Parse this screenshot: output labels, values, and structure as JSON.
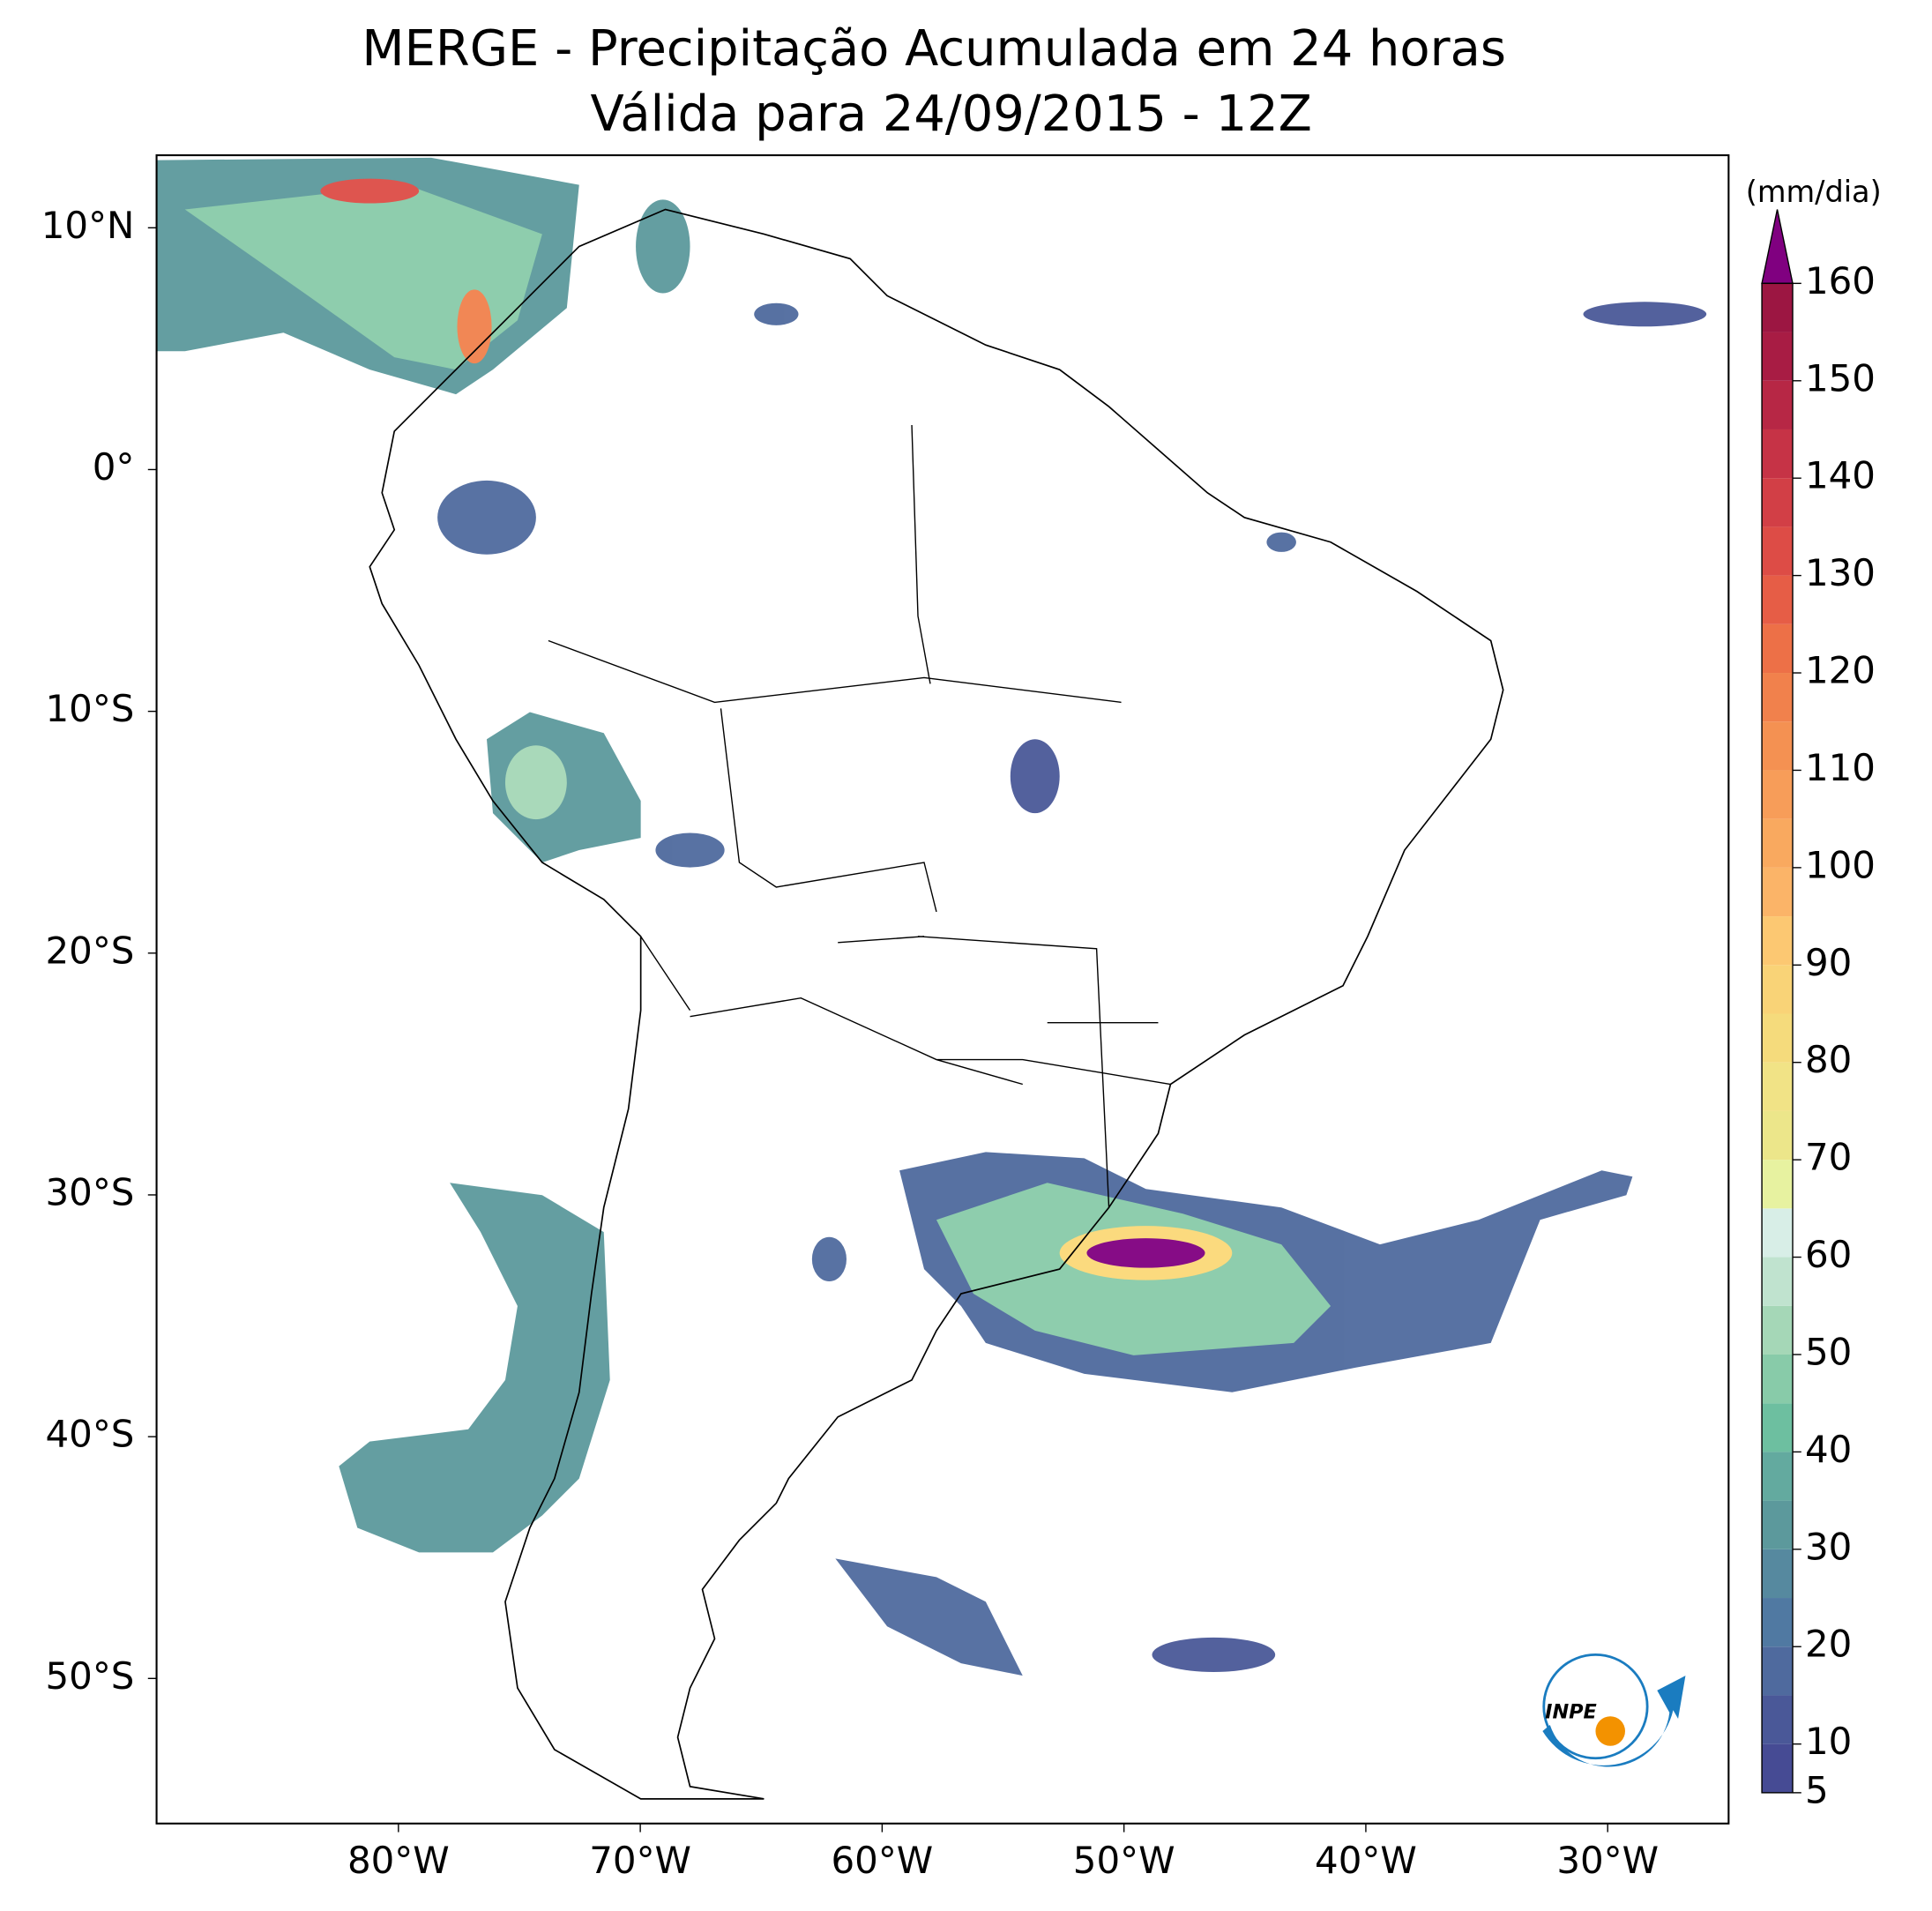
{
  "header": {
    "title": "MERGE - Precipitação Acumulada em 24 horas",
    "subtitle": "Válida para 24/09/2015 - 12Z"
  },
  "map": {
    "xlim": [
      -90,
      -25
    ],
    "ylim": [
      -56,
      13
    ],
    "xticks": [
      {
        "value": -80,
        "label": "80°W"
      },
      {
        "value": -70,
        "label": "70°W"
      },
      {
        "value": -60,
        "label": "60°W"
      },
      {
        "value": -50,
        "label": "50°W"
      },
      {
        "value": -40,
        "label": "40°W"
      },
      {
        "value": -30,
        "label": "30°W"
      }
    ],
    "yticks": [
      {
        "value": 10,
        "label": "10°N"
      },
      {
        "value": 0,
        "label": "0°"
      },
      {
        "value": -10,
        "label": "10°S"
      },
      {
        "value": -20,
        "label": "20°S"
      },
      {
        "value": -30,
        "label": "30°S"
      },
      {
        "value": -40,
        "label": "40°S"
      },
      {
        "value": -50,
        "label": "50°S"
      }
    ]
  },
  "colorbar": {
    "label": "(mm/dia)",
    "lim": [
      5,
      160
    ],
    "ticks": [
      5,
      10,
      20,
      30,
      40,
      50,
      60,
      70,
      80,
      90,
      100,
      110,
      120,
      130,
      140,
      150,
      160
    ],
    "levels": [
      5,
      10,
      15,
      20,
      25,
      30,
      35,
      40,
      45,
      50,
      55,
      60,
      65,
      70,
      75,
      80,
      85,
      90,
      95,
      100,
      105,
      110,
      115,
      120,
      125,
      130,
      135,
      140,
      145,
      150,
      155,
      160
    ],
    "colors": [
      "#464b94",
      "#4a5898",
      "#4f6a9e",
      "#5079a2",
      "#56899f",
      "#5c999c",
      "#63aa9f",
      "#6dbfa0",
      "#88cba9",
      "#a5d7b7",
      "#c0e3cf",
      "#d8eee7",
      "#e7f2a0",
      "#ece68a",
      "#f1e386",
      "#f5db7c",
      "#f9d377",
      "#fcc872",
      "#fbb468",
      "#f9a95f",
      "#f79d59",
      "#f49152",
      "#f1814c",
      "#ed7047",
      "#e65d46",
      "#dd4c46",
      "#d23f46",
      "#c63346",
      "#b72745",
      "#a81c44",
      "#9c1642"
    ],
    "extend_color": "#800080"
  },
  "logo": {
    "text": "INPE"
  }
}
